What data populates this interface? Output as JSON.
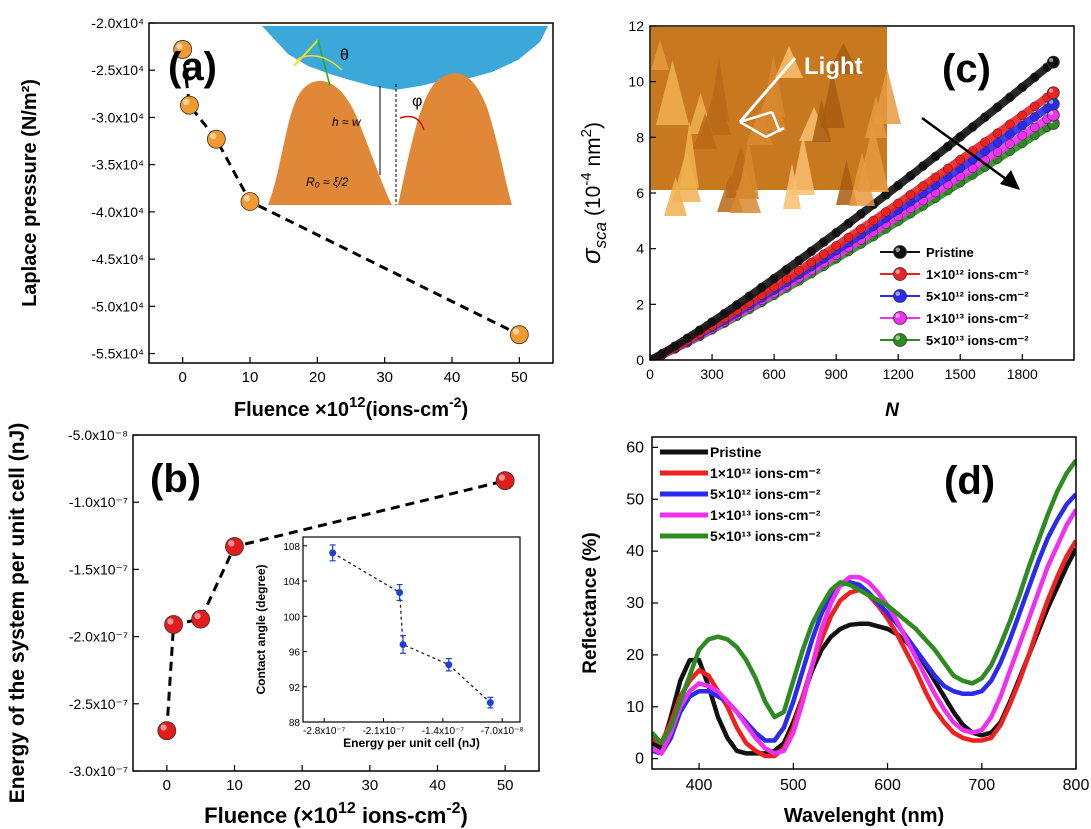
{
  "figure_caption_labels": {
    "a": "(a)",
    "b": "(b)",
    "c": "(c)",
    "d": "(d)"
  },
  "chart_data": [
    {
      "panel": "(a)",
      "type": "scatter",
      "xlabel_prefix": "Fluence ×10",
      "xlabel_exp": "12",
      "xlabel_suffix": "(ions-cm",
      "xlabel_suffix_exp": "-2",
      "xlabel_close": ")",
      "ylabel": "Laplace pressure (N/m²)",
      "xlim": [
        -5,
        55
      ],
      "ylim": [
        -56000,
        -20000
      ],
      "xticks": [
        0,
        10,
        20,
        30,
        40,
        50
      ],
      "yticks": [
        -20000,
        -25000,
        -30000,
        -35000,
        -40000,
        -45000,
        -50000,
        -55000
      ],
      "ytick_labels": [
        "-2.0x10⁴",
        "-2.5x10⁴",
        "-3.0x10⁴",
        "-3.5x10⁴",
        "-4.0x10⁴",
        "-4.5x10⁴",
        "-5.0x10⁴",
        "-5.5x10⁴"
      ],
      "marker_color": "#f39a2e",
      "x": [
        0,
        1,
        5,
        10,
        50
      ],
      "y": [
        -22800,
        -28700,
        -32300,
        -38900,
        -53000
      ],
      "inset": {
        "type": "schematic",
        "labels": {
          "theta": "θ",
          "phi": "φ",
          "h": "h ≈ w",
          "r0": "R₀ ≈ ξ/2"
        }
      }
    },
    {
      "panel": "(b)",
      "type": "scatter",
      "xlabel_prefix": "Fluence (×10",
      "xlabel_exp": "12",
      "xlabel_suffix": " ions-cm",
      "xlabel_suffix_exp": "-2",
      "xlabel_close": ")",
      "ylabel": "Energy of the system per unit cell (nJ)",
      "xlim": [
        -5,
        55
      ],
      "ylim": [
        -3e-07,
        -5e-08
      ],
      "xticks": [
        0,
        10,
        20,
        30,
        40,
        50
      ],
      "yticks": [
        -5e-08,
        -1e-07,
        -1.5e-07,
        -2e-07,
        -2.5e-07,
        -3e-07
      ],
      "ytick_labels": [
        "-5.0x10⁻⁸",
        "-1.0x10⁻⁷",
        "-1.5x10⁻⁷",
        "-2.0x10⁻⁷",
        "-2.5x10⁻⁷",
        "-3.0x10⁻⁷"
      ],
      "marker_color": "#e31b1b",
      "x": [
        0,
        1,
        5,
        10,
        50
      ],
      "y": [
        -2.7e-07,
        -1.91e-07,
        -1.87e-07,
        -1.33e-07,
        -8.4e-08
      ],
      "inset": {
        "type": "scatter",
        "xlabel": "Energy per unit cell (nJ)",
        "ylabel": "Contact angle (degree)",
        "xlim": [
          -3.05e-07,
          -4.9e-08
        ],
        "ylim": [
          88,
          109
        ],
        "xticks": [
          -2.8e-07,
          -2.1e-07,
          -1.4e-07,
          -7e-08
        ],
        "xtick_labels": [
          "-2.8x10⁻⁷",
          "-2.1x10⁻⁷",
          "-1.4x10⁻⁷",
          "-7.0x10⁻⁸"
        ],
        "yticks": [
          88,
          92,
          96,
          100,
          104,
          108
        ],
        "marker_color": "#1f3fd8",
        "x": [
          -2.7e-07,
          -1.91e-07,
          -1.87e-07,
          -1.33e-07,
          -8.4e-08
        ],
        "y": [
          107.2,
          102.7,
          96.8,
          94.5,
          90.2
        ],
        "err": [
          0.9,
          0.9,
          1.0,
          0.7,
          0.6
        ]
      }
    },
    {
      "panel": "(c)",
      "type": "line",
      "xlabel": "N",
      "ylabel_main": "σ",
      "ylabel_sub": "sca",
      "ylabel_unit": " (10",
      "ylabel_unit_exp": "-4",
      "ylabel_unit_tail": " nm",
      "ylabel_unit_exp2": "2",
      "ylabel_close": ")",
      "xlim": [
        0,
        2050
      ],
      "ylim": [
        0,
        12
      ],
      "xticks": [
        0,
        300,
        600,
        900,
        1200,
        1500,
        1800
      ],
      "yticks": [
        0,
        2,
        4,
        6,
        8,
        10,
        12
      ],
      "inset_label": "Light",
      "series": [
        {
          "name": "Pristine",
          "color": "#111111",
          "end": 10.7
        },
        {
          "name": "1×10¹² ions-cm⁻²",
          "color": "#f02020",
          "end": 9.6
        },
        {
          "name": "5×10¹² ions-cm⁻²",
          "color": "#2a2af0",
          "end": 9.2
        },
        {
          "name": "1×10¹³ ions-cm⁻²",
          "color": "#f030f0",
          "end": 8.8
        },
        {
          "name": "5×10¹³ ions-cm⁻²",
          "color": "#2e8b22",
          "end": 8.5
        }
      ],
      "x_end": 1950
    },
    {
      "panel": "(d)",
      "type": "line",
      "xlabel": "Wavelenght (nm)",
      "ylabel": "Reflectance (%)",
      "xlim": [
        350,
        800
      ],
      "ylim": [
        -2,
        62
      ],
      "xticks": [
        400,
        500,
        600,
        700,
        800
      ],
      "yticks": [
        0,
        10,
        20,
        30,
        40,
        50,
        60
      ],
      "x": [
        350,
        360,
        370,
        380,
        390,
        400,
        410,
        420,
        430,
        440,
        450,
        460,
        470,
        480,
        490,
        500,
        510,
        520,
        530,
        540,
        550,
        560,
        570,
        580,
        590,
        600,
        610,
        620,
        630,
        640,
        650,
        660,
        670,
        680,
        690,
        700,
        710,
        720,
        730,
        740,
        750,
        760,
        770,
        780,
        790,
        800
      ],
      "series": [
        {
          "name": "Pristine",
          "color": "#111111",
          "y": [
            3,
            2,
            8,
            15,
            19,
            19,
            14,
            8,
            4,
            1.5,
            1,
            1,
            1,
            1.5,
            3,
            7,
            12,
            17,
            21,
            23.5,
            25,
            25.8,
            26,
            26,
            25.5,
            25,
            24,
            22.5,
            20.5,
            18,
            15,
            12,
            9,
            6.5,
            5,
            4.5,
            5,
            7,
            11,
            15.5,
            20,
            24.5,
            29,
            33,
            37,
            40.5
          ]
        },
        {
          "name": "1×10¹² ions-cm⁻²",
          "color": "#f02020",
          "y": [
            4,
            3,
            7,
            12,
            15,
            17,
            16,
            13,
            10,
            6,
            3,
            1.5,
            0.5,
            0.5,
            2,
            6,
            12,
            18,
            23,
            27.5,
            30.5,
            32,
            32.5,
            31.5,
            29.5,
            27,
            24,
            20.5,
            17,
            13,
            9.5,
            7,
            5,
            4,
            3.5,
            3.5,
            4,
            6.5,
            10.5,
            15,
            20,
            25.5,
            30.5,
            35,
            39,
            42
          ]
        },
        {
          "name": "5×10¹² ions-cm⁻²",
          "color": "#2a2af0",
          "y": [
            1.5,
            1,
            4,
            9,
            12,
            13,
            13,
            12,
            11,
            9,
            7,
            5,
            3.5,
            3.5,
            6,
            11,
            17,
            23,
            28,
            31.5,
            33.5,
            34,
            33.5,
            32,
            30,
            28,
            26,
            23.5,
            21,
            18.5,
            16,
            14,
            13,
            12.5,
            12.5,
            13,
            15,
            18.5,
            23,
            28,
            33,
            38,
            42.5,
            46,
            49,
            51
          ]
        },
        {
          "name": "1×10¹³ ions-cm⁻²",
          "color": "#f030f0",
          "y": [
            2,
            1,
            5,
            10,
            13,
            14.5,
            14,
            13,
            11,
            9,
            6.5,
            4,
            2,
            1,
            1.5,
            5,
            11,
            18,
            25,
            30,
            33.5,
            35,
            35,
            34,
            32,
            29.5,
            26.5,
            23,
            19.5,
            16,
            12.5,
            9.5,
            7,
            5.5,
            5,
            5.5,
            8,
            12,
            17,
            22,
            27,
            32,
            37,
            41,
            45,
            48
          ]
        },
        {
          "name": "5×10¹³ ions-cm⁻²",
          "color": "#2e8b22",
          "y": [
            5,
            3,
            6,
            11,
            16,
            21,
            23,
            23.5,
            23,
            21.5,
            19,
            15.5,
            11,
            8,
            9,
            15,
            21,
            26,
            29.5,
            32.5,
            34,
            33.5,
            32.5,
            31.5,
            30.5,
            29.5,
            28,
            26.5,
            25,
            23,
            21,
            18.5,
            16,
            15,
            14.5,
            15.5,
            18,
            22,
            26.5,
            31.5,
            37,
            42,
            47,
            51.5,
            55,
            57.5
          ]
        }
      ]
    }
  ]
}
